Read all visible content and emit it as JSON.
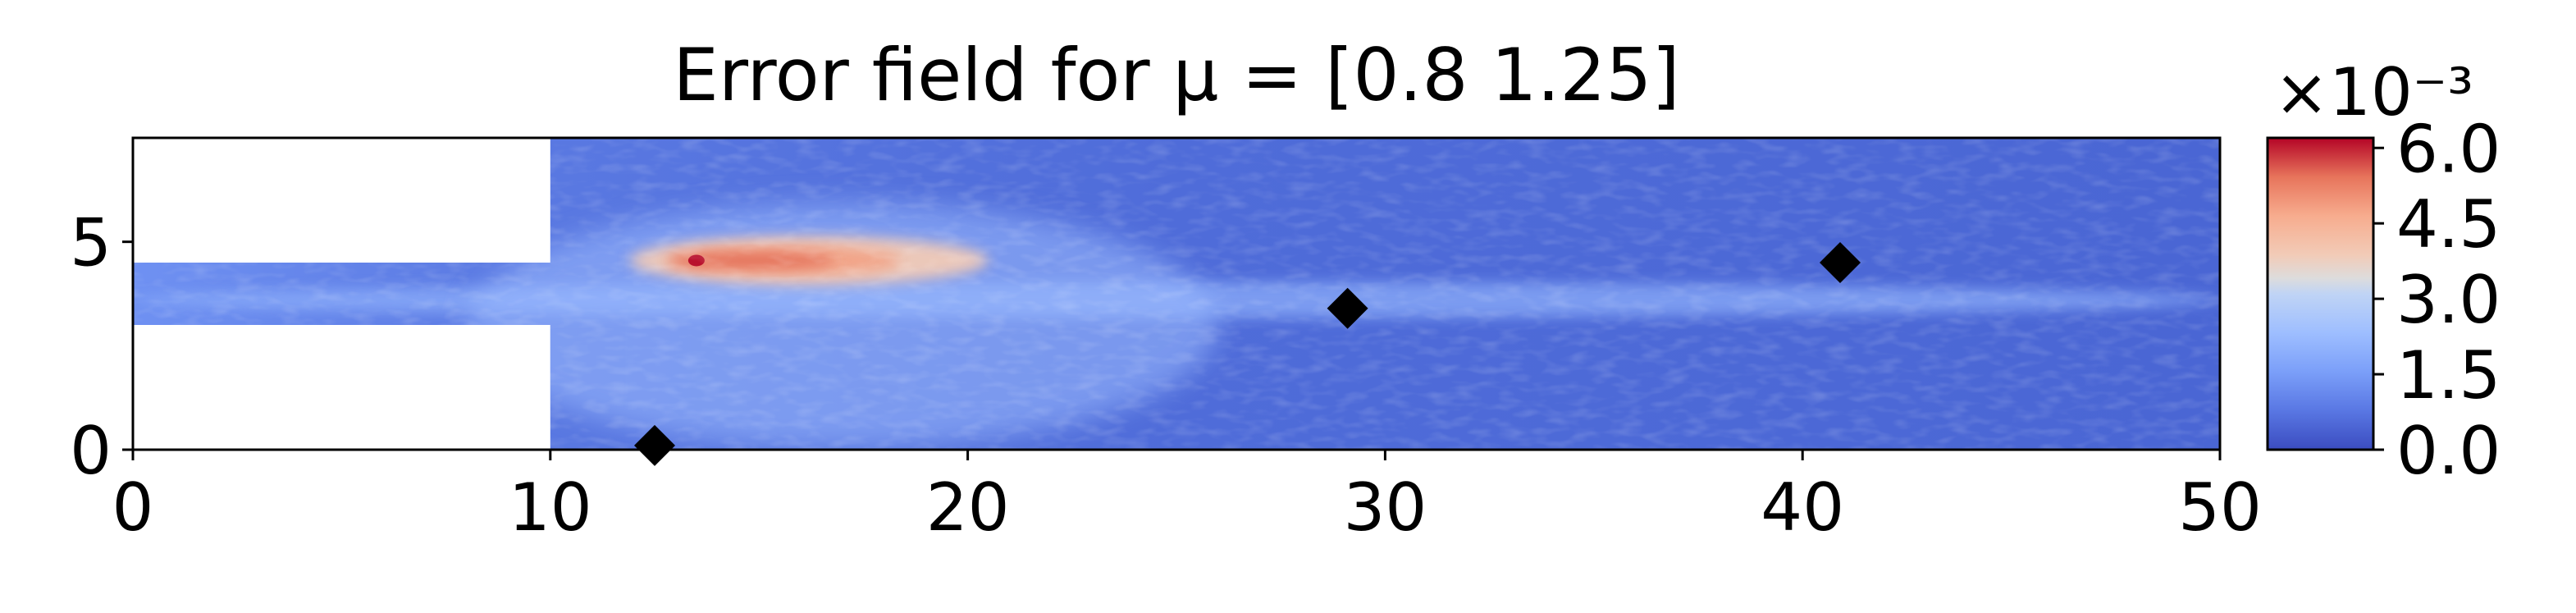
{
  "chart_data": {
    "type": "heatmap",
    "title": "Error field for μ = [0.8  1.25]",
    "xlabel": "",
    "ylabel": "",
    "xlim": [
      0,
      50
    ],
    "ylim": [
      0,
      7.5
    ],
    "xticks": [
      0,
      10,
      20,
      30,
      40,
      50
    ],
    "yticks": [
      0,
      5
    ],
    "x_tick_labels": [
      "0",
      "10",
      "20",
      "30",
      "40",
      "50"
    ],
    "y_tick_labels": [
      "0",
      "5"
    ],
    "domain": {
      "inlet_channel": {
        "x": [
          0,
          10
        ],
        "y": [
          3,
          4.5
        ]
      },
      "main_channel": {
        "x": [
          10,
          50
        ],
        "y": [
          0,
          7.5
        ]
      }
    },
    "colormap": "coolwarm",
    "colorbar": {
      "min": 0.0,
      "max": 6.2,
      "ticks": [
        0.0,
        1.5,
        3.0,
        4.5,
        6.0
      ],
      "tick_labels": [
        "0.0",
        "1.5",
        "3.0",
        "4.5",
        "6.0"
      ],
      "scale_label": "×10⁻³"
    },
    "field_features": [
      {
        "description": "hot jet",
        "x_range": [
          12,
          21
        ],
        "y_center": 4.55,
        "peak_value": 6.0
      },
      {
        "description": "centerline band",
        "x_range": [
          0,
          50
        ],
        "y_center": 3.6,
        "value": 1.3
      },
      {
        "description": "background",
        "value": 0.3
      }
    ],
    "markers": {
      "shape": "diamond",
      "color": "#000000",
      "points": [
        {
          "x": 12.5,
          "y": 0.1
        },
        {
          "x": 29.1,
          "y": 3.4
        },
        {
          "x": 40.9,
          "y": 4.5
        }
      ]
    },
    "colors": {
      "cmap_low": "#3b4cc0",
      "cmap_mid": "#dddddd",
      "cmap_high": "#b40426"
    }
  }
}
